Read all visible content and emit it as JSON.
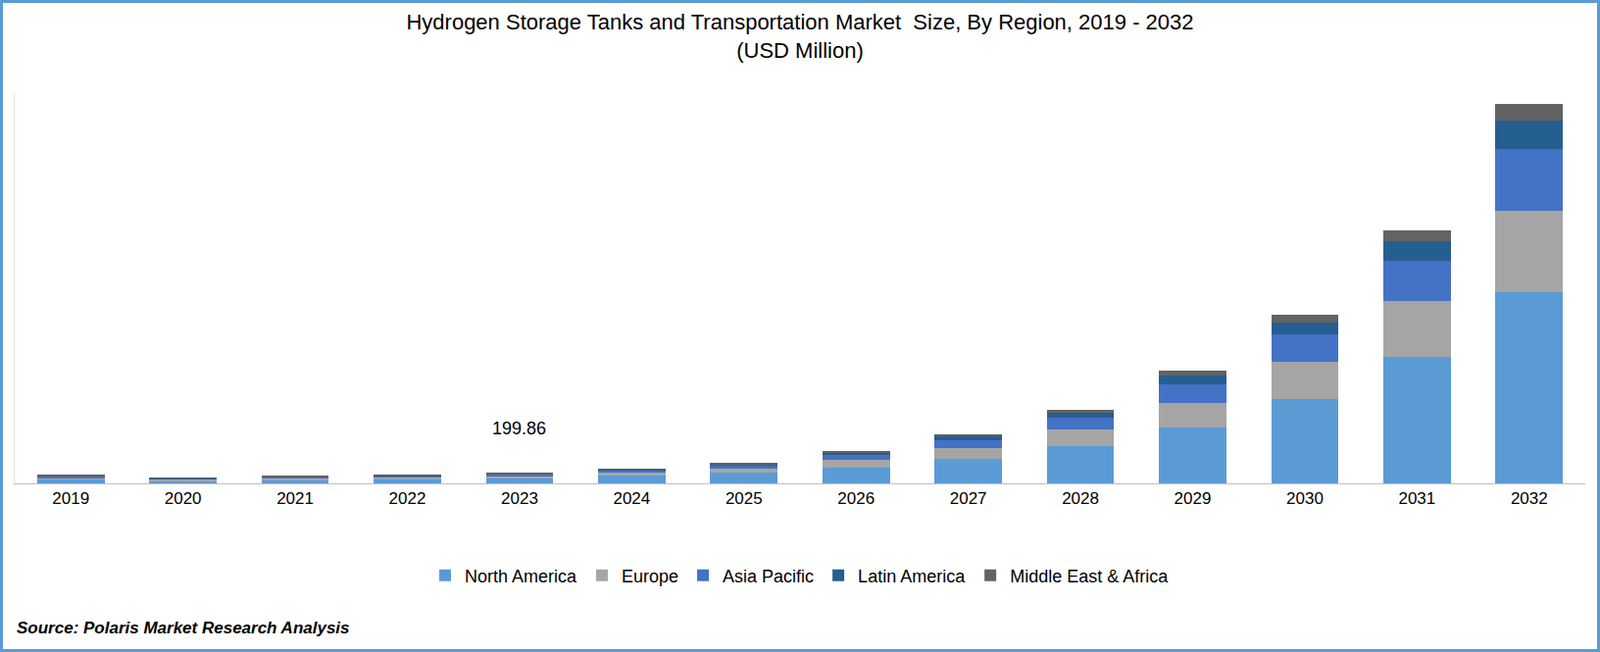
{
  "chart_data": {
    "type": "bar",
    "title": "Hydrogen Storage Tanks and Transportation Market  Size, By Region, 2019 - 2032",
    "subtitle": "(USD Million)",
    "source": "Source: Polaris Market Research Analysis",
    "categories": [
      "2019",
      "2020",
      "2021",
      "2022",
      "2023",
      "2024",
      "2025",
      "2026",
      "2027",
      "2028",
      "2029",
      "2030",
      "2031",
      "2032"
    ],
    "series": [
      {
        "name": "North America",
        "color": "#5b9bd5",
        "values": [
          80,
          55,
          70,
          88,
          104.2,
          150,
          210,
          300,
          480,
          740,
          1100,
          1660,
          2500,
          3780
        ]
      },
      {
        "name": "Europe",
        "color": "#a5a5a5",
        "values": [
          33,
          23,
          29,
          36,
          41.5,
          60,
          85,
          160,
          220,
          320,
          480,
          740,
          1100,
          1600
        ]
      },
      {
        "name": "Asia Pacific",
        "color": "#4472c4",
        "values": [
          25,
          17,
          22,
          28,
          31.3,
          45,
          60,
          100,
          160,
          240,
          380,
          540,
          800,
          1220
        ]
      },
      {
        "name": "Latin America",
        "color": "#255e91",
        "values": [
          12,
          9,
          11,
          13,
          13.9,
          20,
          30,
          50,
          60,
          100,
          160,
          240,
          380,
          560
        ]
      },
      {
        "name": "Middle East & Africa",
        "color": "#636363",
        "values": [
          8,
          6,
          7,
          8,
          8.96,
          15,
          20,
          35,
          50,
          60,
          100,
          140,
          220,
          320
        ]
      }
    ],
    "annotations": [
      {
        "x": "2023",
        "text": "199.86"
      }
    ],
    "stacked": true,
    "ylim": [
      0,
      7700
    ],
    "yticks": [
      0
    ],
    "tick_labels": "x",
    "grid": false,
    "legend": "bottom"
  }
}
